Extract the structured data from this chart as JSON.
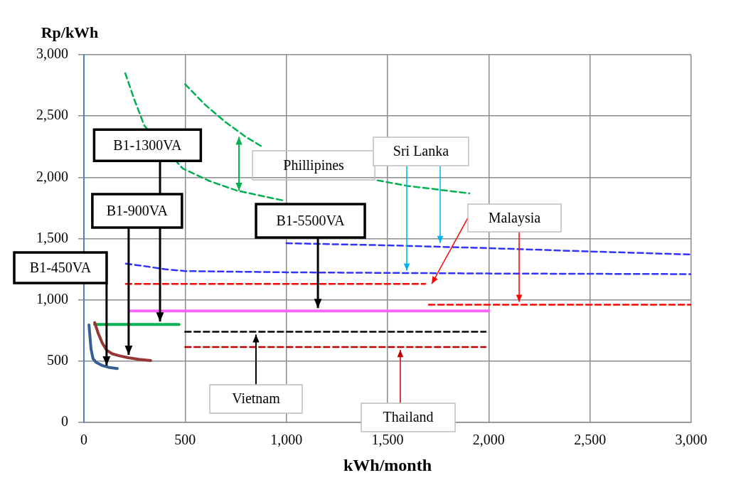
{
  "chart_data": {
    "type": "line",
    "xlabel": "kWh/month",
    "ylabel": "Rp/kWh",
    "xlim": [
      0,
      3000
    ],
    "xticks": [
      0,
      500,
      {
        "value": 1000,
        "label": "1,000"
      },
      {
        "value": 1500,
        "label": "1,500"
      },
      {
        "value": 2000,
        "label": "2,000"
      },
      {
        "value": 2500,
        "label": "2,500"
      },
      {
        "value": 3000,
        "label": "3,000"
      }
    ],
    "ylim": [
      0,
      3000
    ],
    "yticks": [
      0,
      500,
      {
        "value": 1000,
        "label": "1,000"
      },
      {
        "value": 1500,
        "label": "1,500"
      },
      {
        "value": 2000,
        "label": "2,000"
      },
      {
        "value": 2500,
        "label": "2,500"
      },
      {
        "value": 3000,
        "label": "3,000"
      }
    ],
    "grid": true,
    "legend": false,
    "series": [
      {
        "color": "#376092",
        "line_style": "solid",
        "x": [
          25,
          30,
          35,
          45,
          60,
          90,
          120,
          165
        ],
        "values": [
          795,
          700,
          600,
          520,
          490,
          465,
          450,
          440
        ]
      },
      {
        "color": "#953735",
        "line_style": "solid",
        "x": [
          53,
          70,
          90,
          112,
          140,
          172,
          218,
          270,
          330
        ],
        "values": [
          815,
          730,
          650,
          590,
          560,
          545,
          528,
          515,
          505
        ]
      },
      {
        "color": "#00b050",
        "line_style": "solid",
        "x": [
          53,
          470
        ],
        "values": [
          800,
          800
        ]
      },
      {
        "color": "#ff66ff",
        "line_style": "solid",
        "x": [
          228,
          2000
        ],
        "values": [
          910,
          910
        ]
      },
      {
        "color": "#00b050",
        "line_style": "dashed",
        "x": [
          500,
          600,
          700,
          800,
          880,
          1100,
          1450,
          1600,
          1904
        ],
        "values": [
          2760,
          2590,
          2450,
          2330,
          2250,
          null,
          1975,
          1930,
          1869
        ]
      },
      {
        "color": "#00b050",
        "line_style": "dashed",
        "x": [
          204,
          250,
          299,
          488,
          620,
          755,
          984
        ],
        "values": [
          2850,
          2630,
          2420,
          2072,
          1970,
          1892,
          1811
        ]
      },
      {
        "color": "#3333ff",
        "line_style": "dashed",
        "x": [
          207,
          300,
          400,
          500,
          1000,
          2000,
          3000
        ],
        "values": [
          1295,
          1275,
          1250,
          1235,
          1225,
          1215,
          1210
        ]
      },
      {
        "color": "#3333ff",
        "line_style": "dashed",
        "x": [
          1000,
          1500,
          2000,
          2500,
          3000
        ],
        "values": [
          1462,
          1445,
          1422,
          1395,
          1370
        ]
      },
      {
        "color": "#ff0000",
        "line_style": "dashed",
        "x": [
          207,
          1686
        ],
        "values": [
          1130,
          1130
        ]
      },
      {
        "color": "#ff0000",
        "line_style": "dashed",
        "x": [
          1704,
          3000
        ],
        "values": [
          960,
          960
        ]
      },
      {
        "color": "#000000",
        "line_style": "dashed",
        "x": [
          500,
          1985
        ],
        "values": [
          740,
          740
        ]
      },
      {
        "color": "#c00000",
        "line_style": "dashed",
        "x": [
          500,
          1985
        ],
        "values": [
          615,
          615
        ]
      }
    ],
    "annotations": [
      {
        "text": "B1-450VA",
        "x": 112,
        "y": 441
      },
      {
        "text": "B1-900VA",
        "x": 221,
        "y": 528
      },
      "B1-1300VA",
      {
        "text": "B1-5500VA",
        "x": 1156,
        "y": 910
      },
      "Phillipines",
      {
        "text": "Sri Lanka",
        "x": 1595,
        "y": 1215
      },
      {
        "text": "Malaysia",
        "x": 2150,
        "y": 960
      },
      {
        "text": "Vietnam",
        "x": 850,
        "y": 740
      },
      {
        "text": "Thailand",
        "x": 1563,
        "y": 615
      }
    ]
  }
}
